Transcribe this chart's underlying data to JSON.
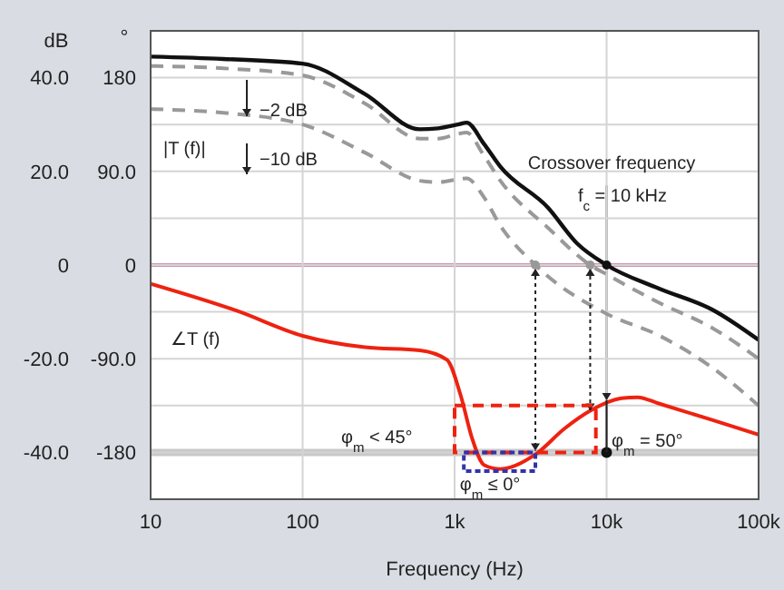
{
  "chart_data": {
    "type": "line",
    "xlabel": "Frequency (Hz)",
    "ylabel": "dB",
    "y2label": "°",
    "log": "x",
    "grid": true,
    "marker": "none",
    "xlim": [
      10,
      100000
    ],
    "xticks": [
      10,
      100,
      {
        "value": 1000,
        "label": "1k"
      },
      {
        "value": 10000,
        "label": "10k"
      },
      {
        "value": 100000,
        "label": "100k"
      }
    ],
    "ylim": [
      -50,
      50
    ],
    "yticks": [
      {
        "value": -50,
        "label": null
      },
      {
        "value": -40,
        "label": "-40.0"
      },
      {
        "value": -30,
        "label": null
      },
      {
        "value": -20,
        "label": "-20.0"
      },
      {
        "value": -10,
        "label": null
      },
      0,
      {
        "value": 10,
        "label": null
      },
      {
        "value": 20,
        "label": "20.0"
      },
      {
        "value": 30,
        "label": null
      },
      {
        "value": 40,
        "label": "40.0"
      },
      {
        "value": 50,
        "label": null
      }
    ],
    "y2lim": [
      -225,
      225
    ],
    "y2ticks": [
      {
        "value": -180,
        "label": "-180"
      },
      {
        "value": -90,
        "label": "-90.0"
      },
      0,
      {
        "value": 90,
        "label": "90.0"
      },
      180
    ],
    "series": [
      {
        "type": "line",
        "color": "#111111",
        "line_style": "solid",
        "x": [
          10,
          30,
          100,
          257,
          590,
          780,
          1050,
          1200,
          1550,
          2000,
          4100,
          6400,
          10000,
          22000,
          50000,
          100000
        ],
        "values": [
          44.5,
          44,
          43,
          36.5,
          29,
          29.2,
          30,
          30.4,
          26,
          21,
          12.3,
          4.6,
          0,
          -5,
          -9.6,
          -16
        ]
      },
      {
        "type": "line",
        "color": "#999999",
        "line_style": "dashed",
        "x": [
          10,
          30,
          100,
          257,
          590,
          780,
          1050,
          1200,
          1550,
          2000,
          4100,
          7800,
          10000,
          22000,
          50000,
          100000
        ],
        "values": [
          42.5,
          42,
          40.5,
          34.5,
          27,
          27,
          28,
          28.3,
          23.5,
          18,
          8,
          0,
          -2,
          -8,
          -13.5,
          -20
        ]
      },
      {
        "type": "line",
        "color": "#999999",
        "line_style": "dashed",
        "x": [
          10,
          30,
          100,
          257,
          590,
          780,
          1050,
          1200,
          1550,
          2000,
          3400,
          10000,
          22000,
          50000,
          100000
        ],
        "values": [
          33.3,
          32.5,
          30,
          24,
          18,
          17.7,
          18.3,
          18.5,
          14.6,
          8.4,
          0,
          -10.4,
          -15,
          -22,
          -30
        ]
      },
      {
        "type": "scatter",
        "axis": "y2",
        "color": "#111111",
        "marker": "circle",
        "x": [
          10000
        ],
        "values": [
          -180
        ]
      },
      {
        "type": "line",
        "axis": "y2",
        "color": "#ee2211",
        "line_style": "solid",
        "x": [
          10,
          37,
          100,
          257,
          590,
          890,
          1100,
          1300,
          1560,
          2000,
          3400,
          5300,
          7800,
          12500,
          16000,
          22000,
          50000,
          100000
        ],
        "values": [
          -18,
          -44,
          -68,
          -79,
          -82,
          -91,
          -126,
          -166,
          -192,
          -196,
          -182,
          -157,
          -140,
          -128,
          -127,
          -133,
          -149,
          -163
        ]
      }
    ],
    "ref_lines": [
      {
        "axis": "y",
        "value": 0,
        "color": "#9b2a5e",
        "line_style": "solid"
      },
      {
        "axis": "y2",
        "value": -180,
        "color": "#c8c8c8",
        "line_style": "solid"
      },
      {
        "axis": "x",
        "value": 10000,
        "color": "#888888",
        "line_style": "solid"
      }
    ],
    "annotations": [
      "−2 dB",
      "−10 dB",
      "|T (f)|",
      "Crossover frequency",
      "f$_{c}$ = 10 kHz",
      "∠T (f)",
      "φ$_{m}$ <  45°",
      "φ$_{m}$ ≤ 0°",
      "φ$_{m}$ = 50°"
    ]
  }
}
